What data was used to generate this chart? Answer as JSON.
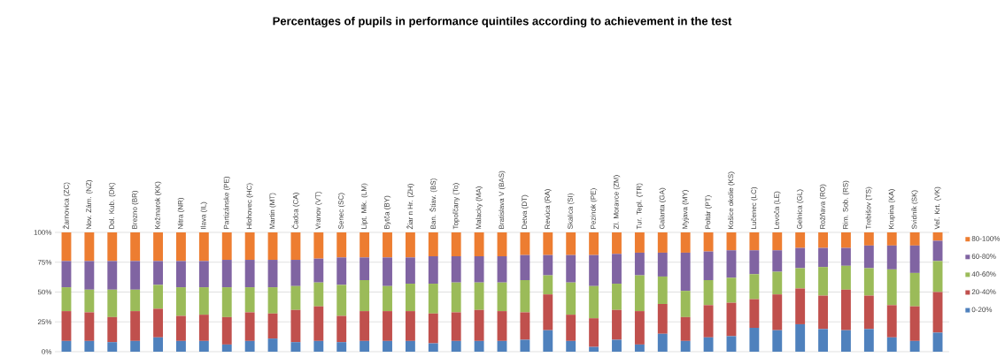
{
  "chart_data": {
    "type": "bar",
    "stacked": true,
    "title": "Percentages of pupils in performance quintiles according to achievement in the test",
    "categories": [
      "Žarnovica (ZC)",
      "Nov. Zám. (NZ)",
      "Dol. Kub. (DK)",
      "Brezno (BR)",
      "Kežmarok (KK)",
      "Nitra (NR)",
      "Ilava (IL)",
      "Partizánske (PE)",
      "Hlohovec (HC)",
      "Martin (MT)",
      "Čadca (CA)",
      "Vranov (VT)",
      "Senec (SC)",
      "Lipt. Mik. (LM)",
      "Bytča (BY)",
      "Žiar n Hr. (ZH)",
      "Ban. Štiav. (BS)",
      "Topoľčany (To)",
      "Malacky (MA)",
      "Bratislava V (BAS)",
      "Detva (DT)",
      "Revúca (RA)",
      "Skalica (SI)",
      "Pezinok (PE)",
      "Zl. Moravce (ZM)",
      "Tur. Tepl. (TR)",
      "Galanta (GA)",
      "Myjava (MY)",
      "Poltár (PT)",
      "Košice okolie (KS)",
      "Lučenec (LC)",
      "Levoča (LE)",
      "Gelnica (GL)",
      "Rožňava (RO)",
      "Rim. Sob. (RS)",
      "Trebišov (TS)",
      "Krupina (KA)",
      "Svidník (SK)",
      "Veľ. Krt. (VK)"
    ],
    "series": [
      {
        "name": "0-20%",
        "color": "#4f81bd",
        "values": [
          9,
          9,
          8,
          9,
          12,
          9,
          9,
          6,
          9,
          11,
          8,
          9,
          8,
          9,
          9,
          9,
          7,
          9,
          9,
          9,
          10,
          18,
          9,
          4,
          10,
          6,
          15,
          9,
          12,
          13,
          20,
          18,
          23,
          19,
          18,
          19,
          12,
          9,
          16
        ]
      },
      {
        "name": "20-40%",
        "color": "#c0504d",
        "values": [
          25,
          24,
          21,
          25,
          24,
          21,
          22,
          23,
          24,
          21,
          27,
          29,
          22,
          25,
          25,
          25,
          25,
          24,
          26,
          25,
          23,
          30,
          22,
          24,
          25,
          28,
          25,
          20,
          27,
          28,
          24,
          30,
          30,
          28,
          34,
          28,
          27,
          29,
          34
        ]
      },
      {
        "name": "40-60%",
        "color": "#9bbb59",
        "values": [
          20,
          19,
          23,
          18,
          20,
          24,
          23,
          25,
          21,
          22,
          20,
          20,
          26,
          26,
          21,
          23,
          25,
          25,
          23,
          24,
          27,
          16,
          27,
          27,
          22,
          30,
          23,
          22,
          21,
          21,
          21,
          19,
          17,
          24,
          20,
          23,
          30,
          28,
          26
        ]
      },
      {
        "name": "60-80%",
        "color": "#8064a2",
        "values": [
          22,
          24,
          24,
          24,
          20,
          22,
          22,
          23,
          23,
          23,
          22,
          20,
          23,
          19,
          24,
          22,
          23,
          22,
          22,
          22,
          21,
          17,
          23,
          26,
          25,
          19,
          20,
          32,
          24,
          23,
          20,
          18,
          17,
          16,
          15,
          19,
          20,
          23,
          17
        ]
      },
      {
        "name": "80-100%",
        "color": "#ed7d31",
        "values": [
          24,
          24,
          24,
          24,
          24,
          24,
          24,
          23,
          23,
          23,
          23,
          22,
          21,
          21,
          21,
          21,
          20,
          20,
          20,
          20,
          19,
          19,
          19,
          19,
          18,
          17,
          17,
          17,
          16,
          15,
          15,
          15,
          13,
          13,
          13,
          11,
          11,
          11,
          7
        ]
      }
    ],
    "ylim": [
      0,
      100
    ],
    "yticks": [
      {
        "value": 0,
        "label": "0%"
      },
      {
        "value": 25,
        "label": "25%"
      },
      {
        "value": 50,
        "label": "50%"
      },
      {
        "value": 75,
        "label": "75%"
      },
      {
        "value": 100,
        "label": "100%"
      }
    ],
    "grid": "y",
    "legend": "right"
  }
}
